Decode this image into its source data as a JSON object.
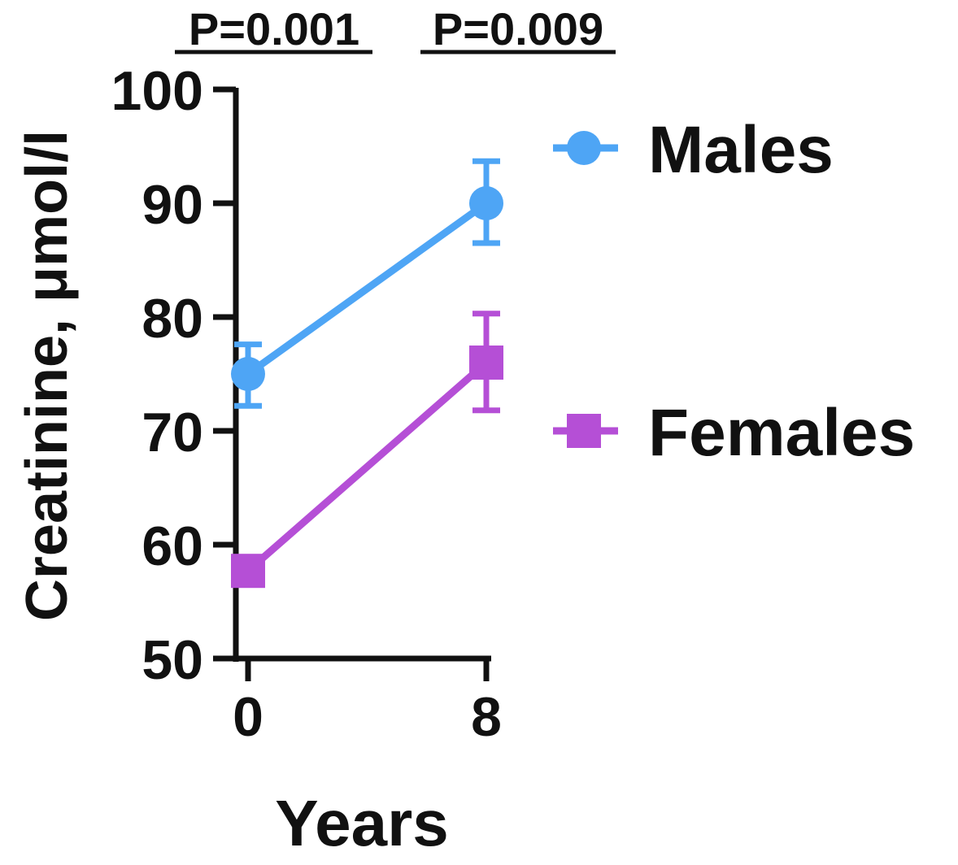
{
  "chart_data": {
    "type": "line",
    "title": "",
    "xlabel": "Years",
    "ylabel": "Creatinine, μmol/l",
    "x": [
      0,
      8
    ],
    "x_tick_labels": [
      "0",
      "8"
    ],
    "ylim": [
      50,
      100
    ],
    "y_ticks": [
      50,
      60,
      70,
      80,
      90,
      100
    ],
    "y_tick_labels": [
      "50",
      "60",
      "70",
      "80",
      "90",
      "100"
    ],
    "grid": false,
    "legend_position": "right",
    "series": [
      {
        "name": "Males",
        "color": "#4ea5f5",
        "marker": "circle",
        "values": [
          75,
          90
        ],
        "error_low": [
          72.2,
          86.5
        ],
        "error_high": [
          77.6,
          93.7
        ]
      },
      {
        "name": "Females",
        "color": "#b54fd6",
        "marker": "square",
        "values": [
          57.7,
          76
        ],
        "error_low": [
          56.5,
          71.8
        ],
        "error_high": [
          58.9,
          80.3
        ]
      }
    ],
    "annotations": [
      "P=0.001",
      "P=0.009"
    ]
  }
}
